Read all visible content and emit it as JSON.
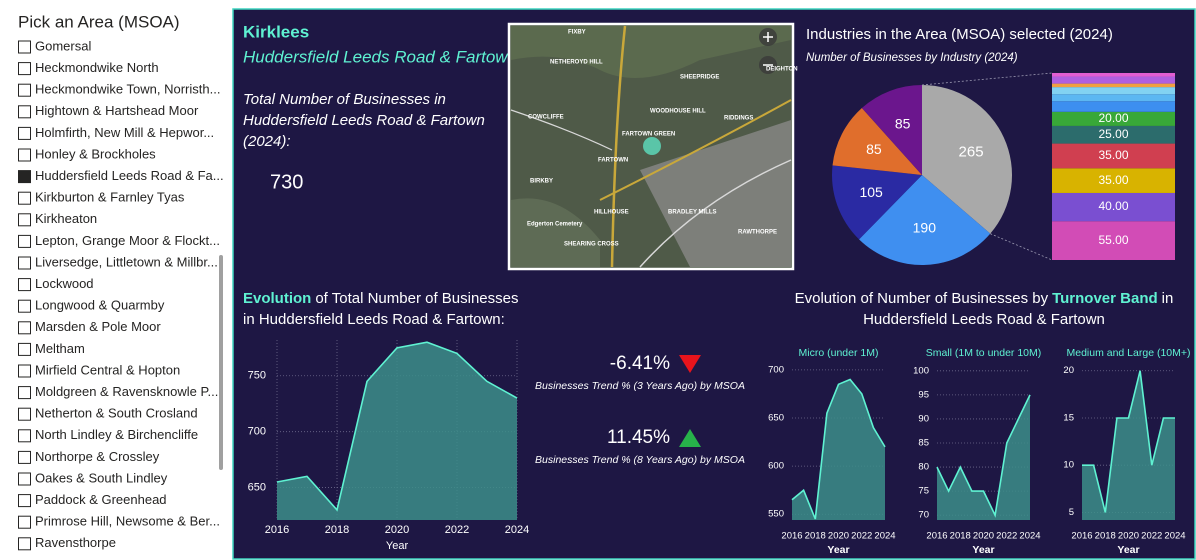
{
  "slicer": {
    "title": "Pick an Area (MSOA)",
    "selected": 6,
    "items": [
      "Gomersal",
      "Heckmondwike North",
      "Heckmondwike Town, Norristh...",
      "Hightown & Hartshead Moor",
      "Holmfirth, New Mill & Hepwor...",
      "Honley & Brockholes",
      "Huddersfield Leeds Road & Fa...",
      "Kirkburton & Farnley Tyas",
      "Kirkheaton",
      "Lepton, Grange Moor & Flockt...",
      "Liversedge, Littletown & Millbr...",
      "Lockwood",
      "Longwood & Quarmby",
      "Marsden & Pole Moor",
      "Meltham",
      "Mirfield Central & Hopton",
      "Moldgreen & Ravensknowle P...",
      "Netherton & South Crosland",
      "North Lindley & Birchencliffe",
      "Northorpe & Crossley",
      "Oakes & South Lindley",
      "Paddock & Greenhead",
      "Primrose Hill, Newsome & Ber...",
      "Ravensthorpe"
    ]
  },
  "header": {
    "area": "Kirklees",
    "msoa": "Huddersfield Leeds Road & Fartown",
    "total_text": [
      "Total Number of Businesses in",
      "Huddersfield Leeds Road & Fartown",
      "(2024):"
    ],
    "total": 730
  },
  "map": {
    "labels": [
      "FIXBY",
      "NETHEROYD HILL",
      "SHEEPRIDGE",
      "DEIGHTON",
      "RIDDINGS",
      "COWCLIFFE",
      "WOODHOUSE HILL",
      "FARTOWN GREEN",
      "FARTOWN",
      "BIRKBY",
      "HILLHOUSE",
      "BRADLEY MILLS",
      "RAWTHORPE",
      "SHEARING CROSS",
      "Edgerton Cemetery"
    ]
  },
  "kpis": [
    {
      "text": "-6.41%",
      "direction": "down",
      "color": "#e8141c",
      "caption": "Businesses Trend % (3 Years Ago) by MSOA"
    },
    {
      "text": "11.45%",
      "direction": "up",
      "color": "#27b24a",
      "caption": "Businesses Trend % (8 Years Ago) by MSOA"
    }
  ],
  "chart_data": [
    {
      "type": "pie-of-bar",
      "title": "Industries in the Area (MSOA) selected (2024)",
      "subtitle": "Number of Businesses by Industry (2024)",
      "values": [
        265,
        190,
        105,
        85,
        85
      ],
      "colors": [
        "#a9a9a9",
        "#3f8ff0",
        "#2a2aa3",
        "#e06e2c",
        "#6b168d"
      ],
      "bar": {
        "values": [
          55,
          40,
          35,
          35,
          25,
          20,
          15,
          10,
          10,
          5,
          10,
          5
        ],
        "value_labels": [
          "55.00",
          "40.00",
          "35.00",
          "35.00",
          "25.00",
          "20.00",
          null,
          null,
          null,
          null,
          null,
          null
        ],
        "colors": [
          "#d24cb6",
          "#7a4fd1",
          "#d8b300",
          "#d03f50",
          "#2c6c6c",
          "#38a838",
          "#3d8ff0",
          "#5cb7f2",
          "#82d2f2",
          "#f0a040",
          "#b05fe0",
          "#e25ed2"
        ]
      }
    },
    {
      "type": "area",
      "title_highlight": "Evolution",
      "title": [
        "of Total Number of Businesses",
        "in Huddersfield Leeds Road & Fartown:"
      ],
      "x": [
        2016,
        2017,
        2018,
        2019,
        2020,
        2021,
        2022,
        2023,
        2024
      ],
      "values": [
        655,
        660,
        630,
        745,
        775,
        780,
        770,
        745,
        730
      ],
      "xlim": [
        2016,
        2024
      ],
      "xticks": [
        2016,
        2018,
        2020,
        2022,
        2024
      ],
      "ylim": [
        621,
        782
      ],
      "yticks": [
        650,
        700,
        750
      ],
      "xlabel": "Year",
      "grid": true,
      "xgrid": true,
      "color": "#5ff2d2"
    },
    {
      "type": "area-multiples",
      "title_before": "Evolution of Number of Businesses by",
      "title_highlight": "Turnover Band",
      "title_after": "in",
      "title_line2": "Huddersfield Leeds Road & Fartown",
      "xlabel": "Year",
      "color": "#5ff2d2",
      "grid": true,
      "panels": [
        {
          "title": "Micro (under 1M)",
          "x": [
            2016,
            2017,
            2018,
            2019,
            2020,
            2021,
            2022,
            2023,
            2024
          ],
          "values": [
            565,
            575,
            545,
            655,
            685,
            690,
            675,
            640,
            620
          ],
          "xlim": [
            2016,
            2024
          ],
          "xticks": [
            2016,
            2018,
            2020,
            2022,
            2024
          ],
          "ylim": [
            544,
            704
          ],
          "yticks": [
            550,
            600,
            650,
            700
          ]
        },
        {
          "title": "Small (1M to under 10M)",
          "x": [
            2016,
            2017,
            2018,
            2019,
            2020,
            2021,
            2022,
            2023,
            2024
          ],
          "values": [
            80,
            75,
            80,
            75,
            75,
            70,
            85,
            90,
            95
          ],
          "xlim": [
            2016,
            2024
          ],
          "xticks": [
            2016,
            2018,
            2020,
            2022,
            2024
          ],
          "ylim": [
            69,
            101
          ],
          "yticks": [
            70,
            75,
            80,
            85,
            90,
            95,
            100
          ]
        },
        {
          "title": "Medium and Large (10M+)",
          "x": [
            2016,
            2017,
            2018,
            2019,
            2020,
            2021,
            2022,
            2023,
            2024
          ],
          "values": [
            10,
            10,
            5,
            15,
            15,
            20,
            10,
            15,
            15
          ],
          "xlim": [
            2016,
            2024
          ],
          "xticks": [
            2016,
            2018,
            2020,
            2022,
            2024
          ],
          "ylim": [
            4.2,
            20.5
          ],
          "yticks": [
            5,
            10,
            15,
            20
          ]
        }
      ]
    }
  ]
}
